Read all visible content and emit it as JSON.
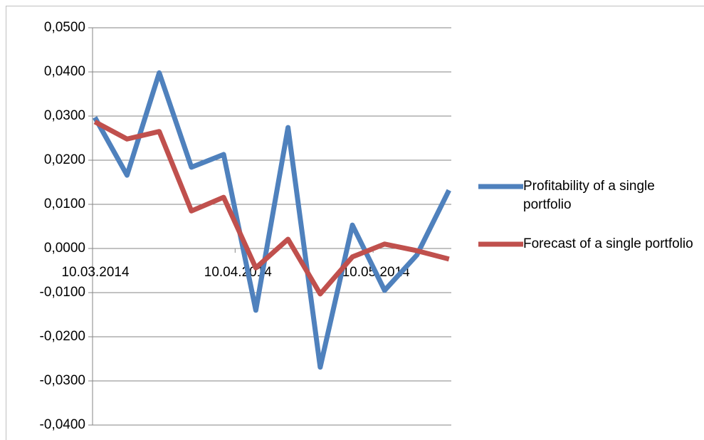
{
  "chart_data": {
    "type": "line",
    "x": [
      "10.03.2014",
      "17.03.2014",
      "24.03.2014",
      "31.03.2014",
      "07.04.2014",
      "14.04.2014",
      "21.04.2014",
      "28.04.2014",
      "05.05.2014",
      "12.05.2014",
      "19.05.2014",
      "26.05.2014"
    ],
    "xlim": [
      "10.03.2014",
      "27.05.2014"
    ],
    "xticks": [
      "10.03.2014",
      "10.04.2014",
      "10.05.2014"
    ],
    "series": [
      {
        "name": "Profitability of a single portfolio",
        "color": "#4f81bd",
        "values": [
          0.0297,
          0.0166,
          0.0398,
          0.0184,
          0.0213,
          -0.014,
          0.0274,
          -0.0269,
          0.0053,
          -0.0095,
          -0.0015,
          0.0132
        ]
      },
      {
        "name": "Forecast of a single portfolio",
        "color": "#c0504d",
        "values": [
          0.0287,
          0.0248,
          0.0265,
          0.0085,
          0.0116,
          -0.0044,
          0.0021,
          -0.0103,
          -0.0019,
          0.001,
          -0.0005,
          -0.0024
        ]
      }
    ],
    "ylim": [
      -0.04,
      0.05
    ],
    "yticks": [
      {
        "value": -0.04,
        "label": "-0,0400"
      },
      {
        "value": -0.03,
        "label": "-0,0300"
      },
      {
        "value": -0.02,
        "label": "-0,0200"
      },
      {
        "value": -0.01,
        "label": "-0,0100"
      },
      {
        "value": 0,
        "label": "0,0000"
      },
      {
        "value": 0.01,
        "label": "0,0100"
      },
      {
        "value": 0.02,
        "label": "0,0200"
      },
      {
        "value": 0.03,
        "label": "0,0300"
      },
      {
        "value": 0.04,
        "label": "0,0400"
      },
      {
        "value": 0.05,
        "label": "0,0500"
      }
    ],
    "grid": true,
    "legend": "right"
  }
}
